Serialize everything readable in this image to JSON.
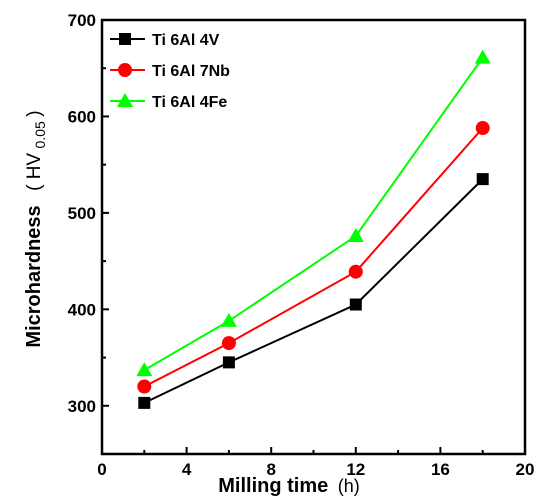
{
  "chart_data": {
    "type": "line",
    "title": "",
    "xlabel": "Milling time",
    "xlabel_unit": "(h)",
    "ylabel": "Microhardness",
    "ylabel_unit_prefix": "( HV",
    "ylabel_unit_sub": "0.05",
    "ylabel_unit_suffix": " )",
    "xlim": [
      0,
      20
    ],
    "ylim": [
      250,
      700
    ],
    "xticks": [
      0,
      4,
      8,
      12,
      16,
      20
    ],
    "yticks": [
      300,
      400,
      500,
      600,
      700
    ],
    "grid": false,
    "legend_position": "top-left",
    "x": [
      2,
      6,
      12,
      18
    ],
    "series": [
      {
        "name": "Ti 6Al 4V",
        "values": [
          303,
          345,
          405,
          535
        ],
        "color": "#000000",
        "marker": "square"
      },
      {
        "name": "Ti 6Al 7Nb",
        "values": [
          320,
          365,
          439,
          588
        ],
        "color": "#ff0000",
        "marker": "circle"
      },
      {
        "name": "Ti 6Al 4Fe",
        "values": [
          337,
          388,
          476,
          661
        ],
        "color": "#00ff00",
        "marker": "triangle"
      }
    ]
  }
}
